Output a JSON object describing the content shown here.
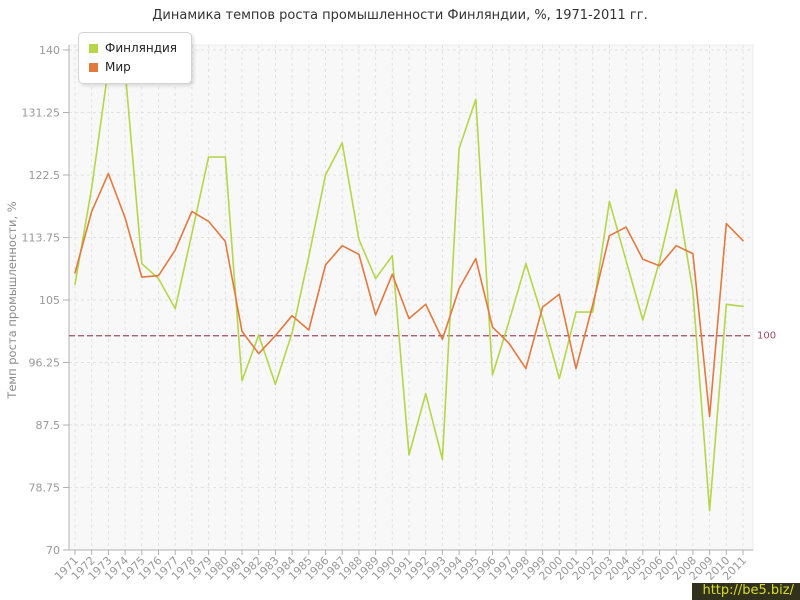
{
  "title": "Динамика темпов роста промышленности Финляндии, %, 1971-2011 гг.",
  "watermark": "http://be5.biz/",
  "legend": {
    "items": [
      {
        "label": "Финляндия",
        "color": "#b5d54a"
      },
      {
        "label": "Мир",
        "color": "#e2793f"
      }
    ]
  },
  "chart_data": {
    "type": "line",
    "title": "Динамика темпов роста промышленности Финляндии, %, 1971-2011 гг.",
    "xlabel": "",
    "ylabel": "Темп роста промышленности, %",
    "ylim": [
      70,
      140
    ],
    "yticks": [
      70,
      78.75,
      87.5,
      96.25,
      105,
      113.75,
      122.5,
      131.25,
      140
    ],
    "grid": true,
    "legend_position": "top-left",
    "reference_line": {
      "value": 100,
      "label": "100",
      "color": "#a04d5f"
    },
    "categories": [
      1971,
      1972,
      1973,
      1974,
      1975,
      1976,
      1977,
      1978,
      1979,
      1980,
      1981,
      1982,
      1983,
      1984,
      1985,
      1986,
      1987,
      1988,
      1989,
      1990,
      1991,
      1992,
      1993,
      1994,
      1995,
      1996,
      1997,
      1998,
      1999,
      2000,
      2001,
      2002,
      2003,
      2004,
      2005,
      2006,
      2007,
      2008,
      2009,
      2010,
      2011
    ],
    "series": [
      {
        "name": "Финляндия",
        "color": "#b5d54a",
        "values": [
          107.2,
          120.7,
          137.5,
          137.2,
          110.1,
          108.0,
          103.8,
          114.3,
          125.0,
          125.0,
          93.7,
          100.1,
          93.2,
          100.4,
          111.1,
          122.5,
          127.0,
          113.5,
          108.0,
          111.2,
          83.3,
          91.9,
          82.7,
          126.2,
          133.1,
          94.5,
          102.1,
          110.1,
          102.5,
          94.0,
          103.3,
          103.3,
          118.8,
          110.5,
          102.2,
          110.4,
          120.5,
          106.2,
          75.5,
          104.4,
          104.1
        ]
      },
      {
        "name": "Мир",
        "color": "#e2793f",
        "values": [
          108.8,
          117.4,
          122.7,
          116.5,
          108.2,
          108.4,
          112.0,
          117.4,
          116.0,
          113.2,
          100.6,
          97.5,
          100.0,
          102.8,
          100.8,
          109.9,
          112.6,
          111.4,
          102.9,
          108.6,
          102.4,
          104.4,
          99.5,
          106.6,
          110.8,
          101.2,
          98.9,
          95.4,
          104.0,
          105.8,
          95.4,
          104.3,
          114.0,
          115.2,
          110.7,
          109.8,
          112.6,
          111.5,
          88.7,
          115.7,
          113.3
        ]
      }
    ],
    "styles": {
      "plot_bg": "#f8f8f8",
      "grid_color": "#e2e2e2",
      "axis_color": "#b0b0b0",
      "tick_text_color": "#999999",
      "axis_title_color": "#8d8d8d"
    }
  }
}
